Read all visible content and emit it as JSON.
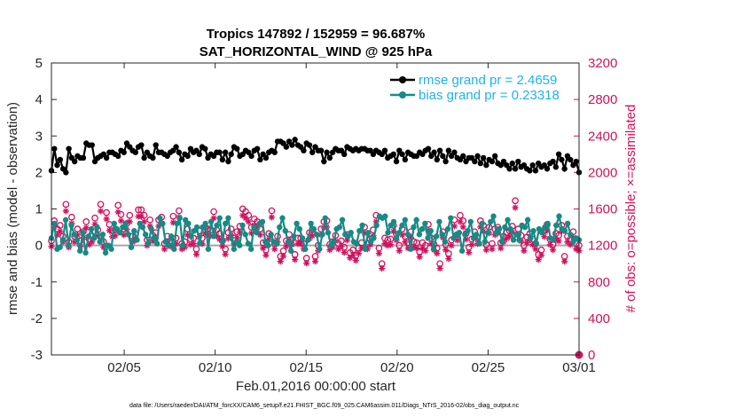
{
  "chart_data": {
    "type": "line",
    "title_line1": "Tropics 147892 / 152959 = 96.687%",
    "title_line2": "SAT_HORIZONTAL_WIND @ 925 hPa",
    "xlabel": "Feb.01,2016 00:00:00 start",
    "ylabel_left": "rmse and bias (model - observation)",
    "ylabel_right": "# of obs: o=possible; ×=assimilated",
    "footnote": "data file: /Users/raeder/DAI/ATM_forcXX/CAM6_setup/f.e21.FHIST_BGC.f09_025.CAM6assim.011/Diags_NTrS_2016-02/obs_diag_output.nc",
    "x_range_days": [
      0,
      29
    ],
    "ylim_left": [
      -3,
      5
    ],
    "ylim_right": [
      0,
      3200
    ],
    "x_ticks": [
      {
        "day": 4,
        "label": "02/05"
      },
      {
        "day": 9,
        "label": "02/10"
      },
      {
        "day": 14,
        "label": "02/15"
      },
      {
        "day": 19,
        "label": "02/20"
      },
      {
        "day": 24,
        "label": "02/25"
      },
      {
        "day": 29,
        "label": "03/01"
      }
    ],
    "y_ticks_left": [
      "-3",
      "-2",
      "-1",
      "0",
      "1",
      "2",
      "3",
      "4",
      "5"
    ],
    "y_ticks_right": [
      "0",
      "400",
      "800",
      "1200",
      "1600",
      "2000",
      "2400",
      "2800",
      "3200"
    ],
    "legend": [
      {
        "label": "rmse grand pr = 2.4659",
        "color": "#000000"
      },
      {
        "label": "bias grand pr = 0.23318",
        "color": "#178a85"
      }
    ],
    "colors": {
      "rmse": "#000000",
      "bias": "#178a85",
      "obs": "#d0115d",
      "zero_line": "#a6a6a6"
    },
    "series": [
      {
        "name": "rmse",
        "values": [
          2.05,
          2.65,
          2.2,
          2.35,
          2.1,
          2.0,
          2.65,
          2.4,
          2.3,
          2.45,
          2.4,
          2.4,
          2.8,
          2.75,
          2.75,
          2.3,
          2.4,
          2.45,
          2.5,
          2.4,
          2.55,
          2.55,
          2.5,
          2.45,
          2.6,
          2.55,
          2.8,
          2.7,
          2.6,
          2.55,
          2.7,
          2.75,
          2.4,
          2.55,
          2.45,
          2.4,
          2.75,
          2.55,
          2.55,
          2.5,
          2.45,
          2.55,
          2.6,
          2.7,
          2.55,
          2.35,
          2.5,
          2.45,
          2.65,
          2.55,
          2.6,
          2.5,
          2.7,
          2.65,
          2.4,
          2.5,
          2.45,
          2.55,
          2.55,
          2.35,
          2.55,
          2.3,
          2.5,
          2.7,
          2.65,
          2.45,
          2.5,
          2.6,
          2.55,
          2.45,
          2.6,
          2.65,
          2.35,
          2.5,
          2.4,
          2.55,
          2.6,
          2.55,
          2.85,
          2.85,
          2.8,
          2.7,
          2.85,
          2.75,
          2.9,
          2.75,
          2.7,
          2.6,
          2.8,
          2.75,
          2.55,
          2.7,
          2.6,
          2.6,
          2.3,
          2.55,
          2.4,
          2.55,
          2.65,
          2.6,
          2.6,
          2.5,
          2.7,
          2.65,
          2.6,
          2.65,
          2.6,
          2.65,
          2.65,
          2.6,
          2.6,
          2.5,
          2.6,
          2.55,
          2.5,
          2.6,
          2.4,
          2.45,
          2.5,
          2.3,
          2.6,
          2.5,
          2.35,
          2.55,
          2.5,
          2.45,
          2.45,
          2.55,
          2.5,
          2.6,
          2.65,
          2.45,
          2.55,
          2.35,
          2.6,
          2.45,
          2.3,
          2.6,
          2.45,
          2.55,
          2.4,
          2.35,
          2.45,
          2.3,
          2.4,
          2.4,
          2.3,
          2.45,
          2.25,
          2.4,
          2.2,
          2.35,
          2.3,
          2.45,
          2.25,
          2.2,
          2.3,
          2.2,
          2.1,
          2.25,
          2.1,
          2.3,
          2.15,
          2.2,
          2.1,
          2.05,
          2.2,
          2.05,
          2.25,
          2.15,
          2.2,
          2.1,
          2.25,
          2.3,
          2.15,
          2.5,
          2.35,
          2.1,
          2.45,
          2.35,
          2.2,
          2.3,
          2.0
        ]
      },
      {
        "name": "bias",
        "values": [
          0.2,
          0.6,
          -0.1,
          -0.05,
          0.15,
          0.7,
          0.0,
          0.55,
          0.3,
          0.15,
          -0.15,
          0.35,
          -0.2,
          0.25,
          0.45,
          0.2,
          0.5,
          0.1,
          0.3,
          -0.2,
          0.0,
          -0.1,
          0.6,
          0.45,
          0.35,
          0.5,
          0.6,
          0.3,
          -0.05,
          0.4,
          0.15,
          0.6,
          0.5,
          0.3,
          0.05,
          0.45,
          0.2,
          0.05,
          0.75,
          0.6,
          0.1,
          0.0,
          0.25,
          -0.1,
          0.6,
          0.75,
          0.0,
          0.7,
          0.6,
          0.25,
          0.4,
          0.5,
          0.05,
          0.5,
          0.6,
          -0.1,
          0.65,
          0.25,
          0.55,
          0.75,
          0.1,
          0.6,
          0.75,
          0.2,
          -0.1,
          0.1,
          0.0,
          0.55,
          0.3,
          0.05,
          -0.1,
          0.5,
          0.35,
          0.6,
          0.65,
          0.1,
          0.0,
          0.3,
          0.1,
          0.05,
          0.5,
          0.75,
          0.4,
          0.1,
          -0.15,
          0.25,
          0.6,
          0.45,
          0.2,
          -0.1,
          0.15,
          0.6,
          0.45,
          0.3,
          -0.1,
          0.3,
          0.75,
          0.35,
          0.0,
          0.1,
          0.45,
          0.5,
          0.7,
          0.3,
          0.25,
          0.35,
          0.1,
          0.05,
          0.4,
          0.55,
          -0.1,
          0.35,
          0.1,
          0.2,
          0.55,
          0.8,
          0.75,
          0.8,
          0.35,
          0.55,
          0.65,
          0.2,
          0.35,
          0.55,
          0.7,
          0.3,
          -0.1,
          0.5,
          0.7,
          0.3,
          0.45,
          0.6,
          0.2,
          0.4,
          -0.1,
          0.25,
          0.65,
          0.3,
          0.1,
          0.45,
          0.75,
          0.2,
          0.3,
          0.35,
          -0.15,
          0.3,
          0.4,
          0.65,
          0.2,
          0.3,
          0.05,
          0.6,
          0.1,
          0.35,
          0.65,
          0.8,
          0.35,
          0.45,
          0.1,
          0.5,
          0.7,
          0.45,
          0.15,
          0.3,
          0.15,
          0.55,
          0.5,
          0.7,
          0.2,
          0.4,
          0.05,
          0.45,
          0.35,
          0.5,
          0.6,
          0.2,
          0.15,
          0.55,
          0.8,
          0.45,
          0.4,
          0.6,
          0.3,
          0.1,
          0.2,
          0.15
        ]
      }
    ],
    "obs_possible": [
      1250,
      1470,
      1380,
      1420,
      1300,
      1650,
      1240,
      1510,
      1300,
      1380,
      1250,
      1350,
      1460,
      1270,
      1300,
      1500,
      1370,
      1650,
      1240,
      1560,
      1430,
      1360,
      1370,
      1640,
      1540,
      1380,
      1440,
      1530,
      1300,
      1320,
      1590,
      1590,
      1530,
      1260,
      1480,
      1310,
      1340,
      1480,
      1510,
      1220,
      1300,
      1250,
      1520,
      1280,
      1580,
      1220,
      1240,
      1380,
      1270,
      1280,
      1160,
      1360,
      1280,
      1400,
      1380,
      1370,
      1570,
      1370,
      1330,
      1250,
      1160,
      1340,
      1380,
      1280,
      1350,
      1410,
      1600,
      1570,
      1530,
      1400,
      1490,
      1460,
      1380,
      1230,
      1150,
      1330,
      1580,
      1220,
      1300,
      1080,
      1140,
      1250,
      1320,
      1270,
      1100,
      1280,
      1280,
      1220,
      1060,
      1340,
      1370,
      1080,
      1200,
      1380,
      1460,
      1470,
      1210,
      1240,
      1310,
      1220,
      1250,
      1180,
      1320,
      1120,
      1150,
      1090,
      1170,
      1230,
      1400,
      1220,
      1270,
      1370,
      1530,
      1170,
      1000,
      1280,
      1260,
      1270,
      1420,
      1320,
      1200,
      1380,
      1300,
      1230,
      1350,
      1240,
      1230,
      1130,
      1230,
      1200,
      1430,
      1280,
      1210,
      1170,
      1000,
      1350,
      1210,
      1110,
      1260,
      1480,
      1320,
      1530,
      1470,
      1330,
      1180,
      1270,
      1350,
      1280,
      1470,
      1420,
      1210,
      1400,
      1220,
      1380,
      1400,
      1230,
      1300,
      1340,
      1360,
      1410,
      1690,
      1380,
      1310,
      1200,
      1290,
      1330,
      1270,
      1220,
      1100,
      1150,
      1360,
      1430,
      1270,
      1210,
      1330,
      1310,
      1420,
      1080,
      1300,
      1270,
      1350,
      1220,
      1200
    ]
  }
}
